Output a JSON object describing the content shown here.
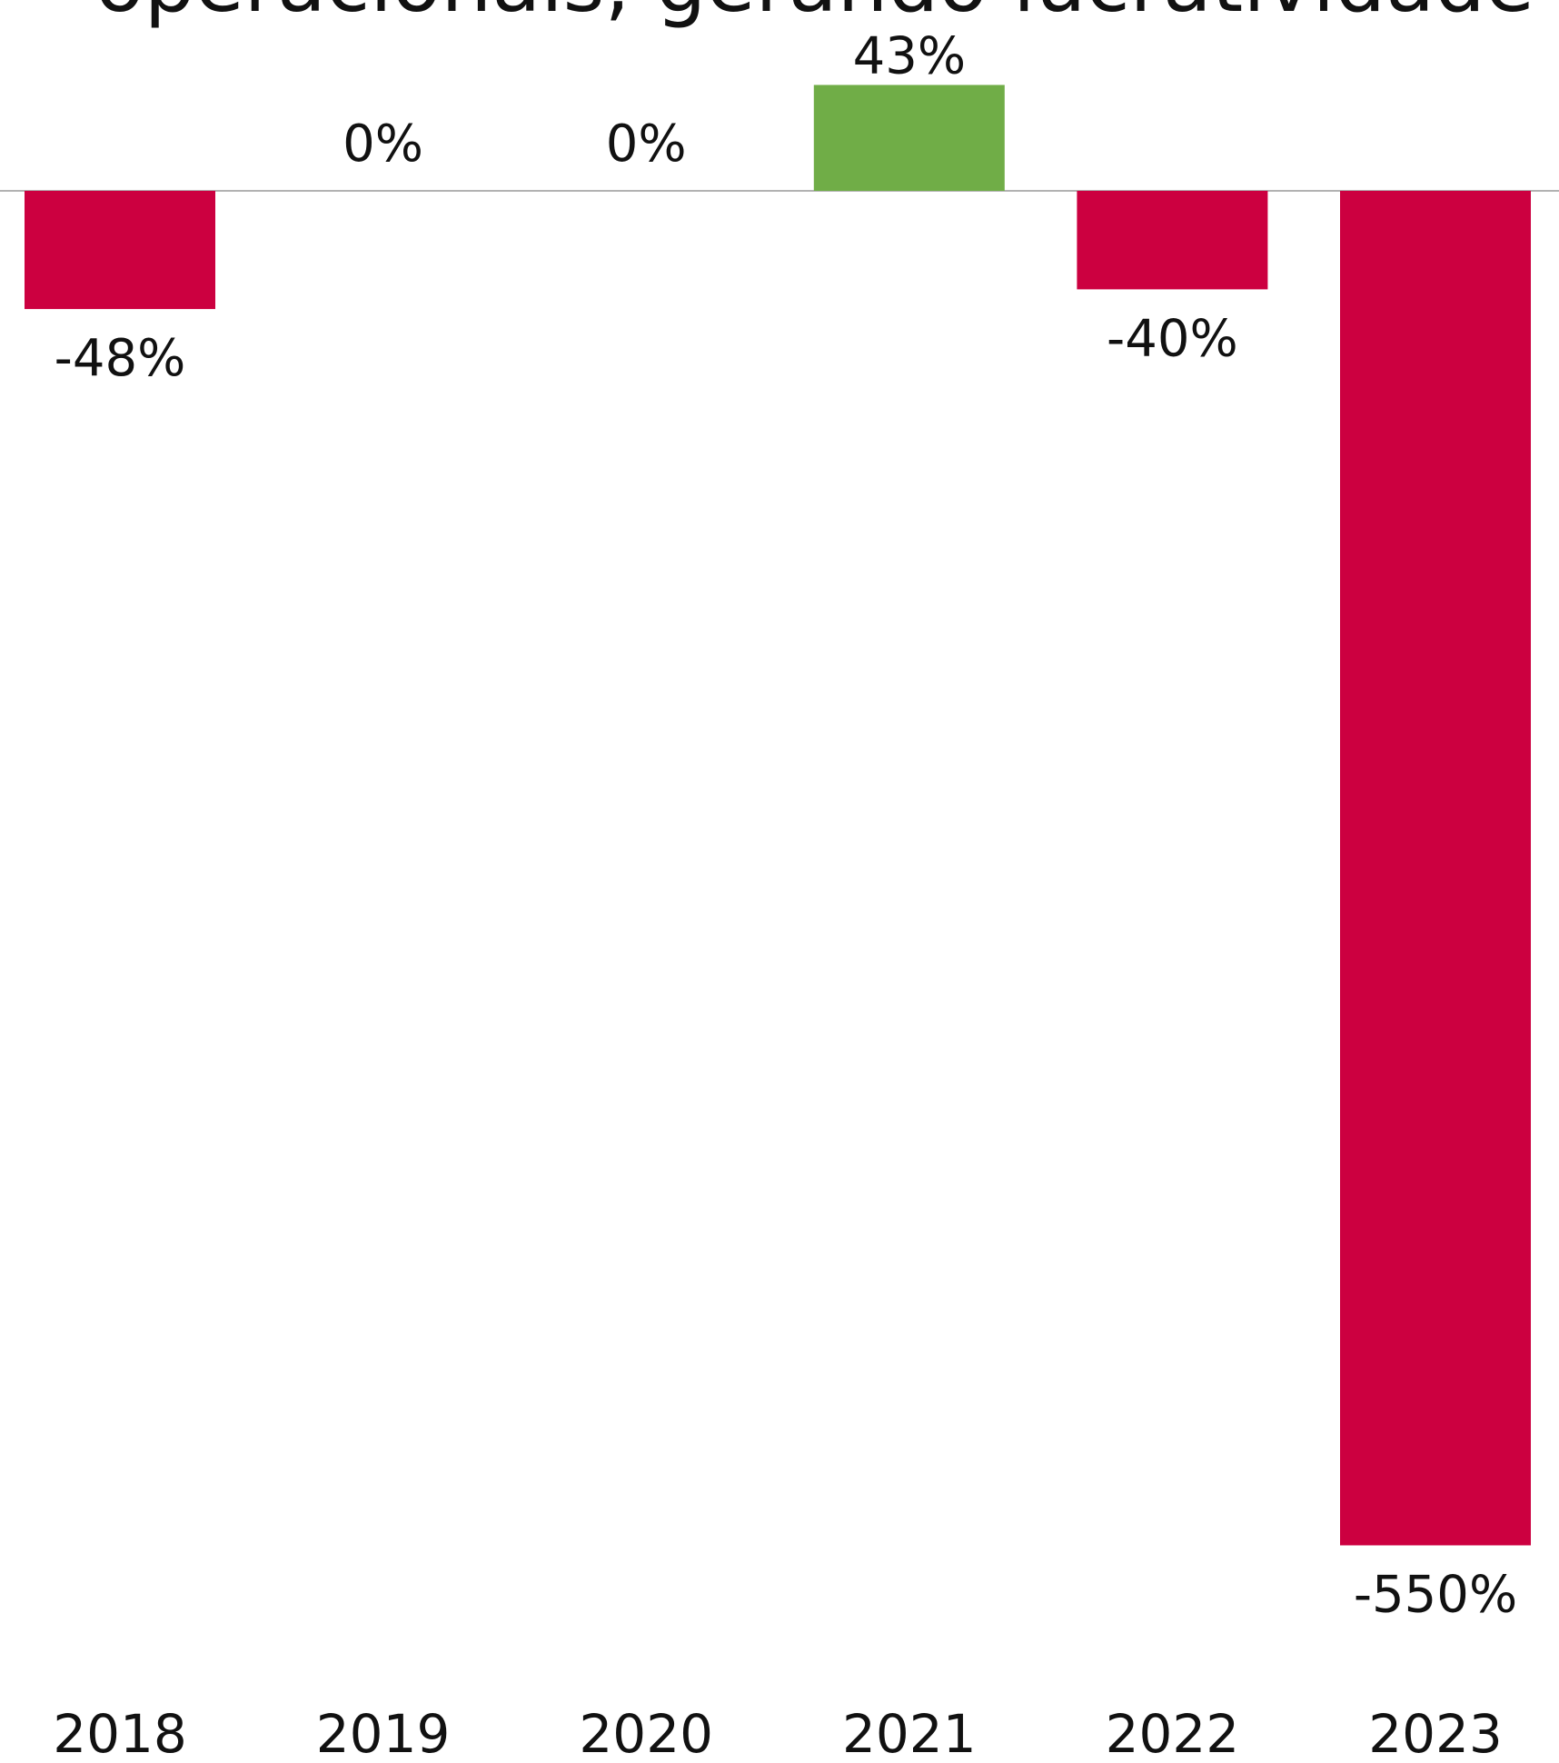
{
  "chart_data": {
    "type": "bar",
    "title": "operacionais, gerando lucratividade",
    "categories": [
      "2018",
      "2019",
      "2020",
      "2021",
      "2022",
      "2023"
    ],
    "values": [
      -48,
      0,
      0,
      43,
      -40,
      -550
    ],
    "value_labels": [
      "-48%",
      "0%",
      "0%",
      "43%",
      "-40%",
      "-550%"
    ],
    "colors": [
      "#cc0040",
      "#cc0040",
      "#cc0040",
      "#70ad47",
      "#cc0040",
      "#cc0040"
    ]
  }
}
